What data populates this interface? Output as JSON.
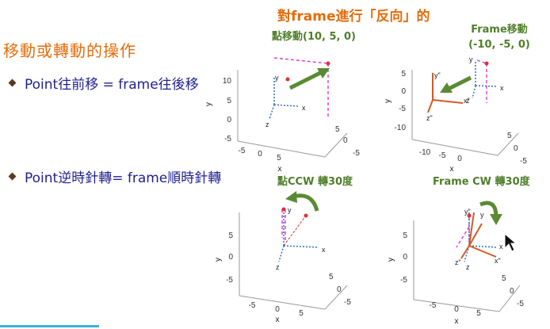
{
  "slide": {
    "title": "移動或轉動的操作",
    "bullets": [
      "Point往前移 = frame往後移",
      "Point逆時針轉= frame順時針轉"
    ],
    "top_heading": "對frame進行「反向」的"
  },
  "captions": {
    "p1": "點移動(10, 5, 0)",
    "p2_line1": "Frame移動",
    "p2_line2": "(-10, -5, 0)",
    "p3": "點CCW 轉30度",
    "p4": "Frame CW 轉30度"
  },
  "plots": {
    "p1": {
      "yticks": [
        "10",
        "5",
        "0",
        "-5"
      ],
      "xticks": [
        "-5",
        "0",
        "5"
      ],
      "zticks": [
        "-5",
        "0",
        "5"
      ],
      "xlabel": "x",
      "ylabel": "y",
      "labels": {
        "y": "y",
        "x": "x",
        "z": "z"
      }
    },
    "p2": {
      "yticks": [
        "5",
        "0",
        "-5",
        "-10"
      ],
      "xticks": [
        "-10",
        "-5",
        "0"
      ],
      "zticks": [
        "-5",
        "0",
        "5"
      ],
      "xlabel": "x",
      "ylabel": "y",
      "labels": {
        "y": "y",
        "x": "x",
        "z": "z",
        "y2": "y\"",
        "x2": "x\"",
        "z2": "z\""
      }
    },
    "p3": {
      "yticks": [
        "5",
        "0",
        "-5"
      ],
      "xticks": [
        "-5",
        "0",
        "5"
      ],
      "zticks": [
        "-5",
        "0",
        "5"
      ],
      "xlabel": "x",
      "ylabel": "y",
      "labels": {
        "y": "y",
        "x": "x",
        "z": "z"
      }
    },
    "p4": {
      "yticks": [
        "5",
        "0",
        "-5"
      ],
      "xticks": [
        "-5",
        "0",
        "5"
      ],
      "zticks": [
        "-5",
        "0",
        "5"
      ],
      "xlabel": "x",
      "ylabel": "y",
      "labels": {
        "y": "y",
        "x": "x",
        "z": "z",
        "y2": "y\"",
        "x2": "x\"",
        "z2": "z\""
      }
    }
  },
  "colors": {
    "title": "#e46c0a",
    "bullet_text": "#1f1f8f",
    "caption": "#4f7f2a",
    "arrow": "#5b8a33",
    "axis_blue": "#3b78c4",
    "frame_orange": "#d05a28",
    "dash_magenta": "#d63bd6",
    "point_red": "#e03030"
  }
}
